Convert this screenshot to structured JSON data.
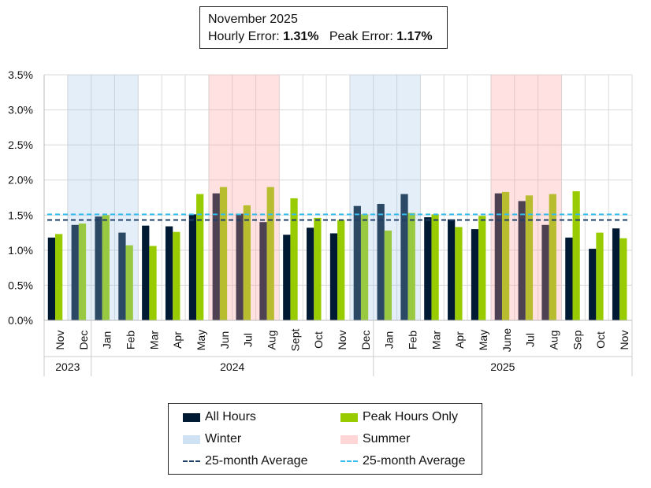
{
  "header": {
    "period": "November 2025",
    "hourly_label": "Hourly Error:",
    "hourly_value": "1.31%",
    "peak_label": "Peak Error:",
    "peak_value": "1.17%"
  },
  "colors": {
    "all_hours": "#001a33",
    "peak": "#99cc00",
    "winter": "#cfe2f3",
    "summer": "#ffd5d5",
    "avg_all": "#1f3f66",
    "avg_peak": "#33bbee"
  },
  "legend": {
    "all_hours": "All Hours",
    "peak": "Peak Hours Only",
    "winter": "Winter",
    "summer": "Summer",
    "avg_all": "25-month Average",
    "avg_peak": "25-month Average"
  },
  "chart_data": {
    "type": "bar",
    "categories": [
      "Nov",
      "Dec",
      "Jan",
      "Feb",
      "Mar",
      "Apr",
      "May",
      "Jun",
      "Jul",
      "Aug",
      "Sept",
      "Oct",
      "Nov",
      "Dec",
      "Jan",
      "Feb",
      "Mar",
      "Apr",
      "May",
      "June",
      "Jul",
      "Aug",
      "Sep",
      "Oct",
      "Nov"
    ],
    "years": [
      {
        "label": "2023",
        "span": 2
      },
      {
        "label": "2024",
        "span": 12
      },
      {
        "label": "2025",
        "span": 11
      }
    ],
    "series": [
      {
        "name": "All Hours",
        "values": [
          1.18,
          1.36,
          1.48,
          1.25,
          1.35,
          1.34,
          1.51,
          1.81,
          1.52,
          1.4,
          1.22,
          1.32,
          1.24,
          1.63,
          1.66,
          1.8,
          1.47,
          1.44,
          1.3,
          1.81,
          1.7,
          1.36,
          1.18,
          1.02,
          1.31
        ]
      },
      {
        "name": "Peak Hours Only",
        "values": [
          1.23,
          1.38,
          1.5,
          1.07,
          1.06,
          1.26,
          1.8,
          1.9,
          1.64,
          1.9,
          1.74,
          1.46,
          1.43,
          1.51,
          1.28,
          1.53,
          1.51,
          1.33,
          1.49,
          1.83,
          1.78,
          1.8,
          1.84,
          1.25,
          1.17
        ]
      }
    ],
    "averages": [
      {
        "name": "25-month Average",
        "series": "All Hours",
        "value": 1.43
      },
      {
        "name": "25-month Average",
        "series": "Peak Hours Only",
        "value": 1.51
      }
    ],
    "winter_categories": [
      1,
      2,
      3,
      13,
      14,
      15
    ],
    "summer_categories": [
      7,
      8,
      9,
      19,
      20,
      21
    ],
    "yticks": [
      "0.0%",
      "0.5%",
      "1.0%",
      "1.5%",
      "2.0%",
      "2.5%",
      "3.0%",
      "3.5%"
    ],
    "ylim": [
      0,
      3.5
    ],
    "grid": true,
    "legend_position": "bottom"
  }
}
